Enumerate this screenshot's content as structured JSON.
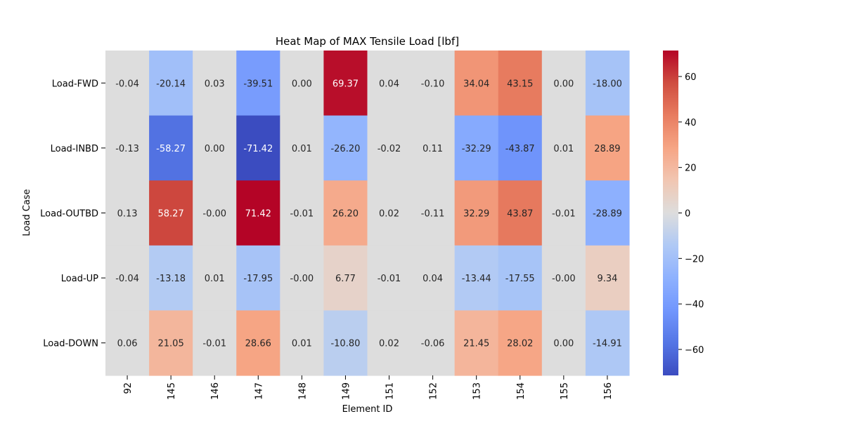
{
  "chart_data": {
    "type": "heatmap",
    "title": "Heat Map of MAX Tensile Load [lbf]",
    "xlabel": "Element ID",
    "ylabel": "Load Case",
    "x_categories": [
      "92",
      "145",
      "146",
      "147",
      "148",
      "149",
      "151",
      "152",
      "153",
      "154",
      "155",
      "156"
    ],
    "y_categories": [
      "Load-FWD",
      "Load-INBD",
      "Load-OUTBD",
      "Load-UP",
      "Load-DOWN"
    ],
    "values": [
      [
        -0.04,
        -20.14,
        0.03,
        -39.51,
        0.0,
        69.37,
        0.04,
        -0.1,
        34.04,
        43.15,
        0.0,
        -18.0
      ],
      [
        -0.13,
        -58.27,
        0.0,
        -71.42,
        0.01,
        -26.2,
        -0.02,
        0.11,
        -32.29,
        -43.87,
        0.01,
        28.89
      ],
      [
        0.13,
        58.27,
        -0.0,
        71.42,
        -0.01,
        26.2,
        0.02,
        -0.11,
        32.29,
        43.87,
        -0.01,
        -28.89
      ],
      [
        -0.04,
        -13.18,
        0.01,
        -17.95,
        -0.0,
        6.77,
        -0.01,
        0.04,
        -13.44,
        -17.55,
        -0.0,
        9.34
      ],
      [
        0.06,
        21.05,
        -0.01,
        28.66,
        0.01,
        -10.8,
        0.02,
        -0.06,
        21.45,
        28.02,
        0.0,
        -14.91
      ]
    ],
    "cell_labels": [
      [
        "-0.04",
        "-20.14",
        "0.03",
        "-39.51",
        "0.00",
        "69.37",
        "0.04",
        "-0.10",
        "34.04",
        "43.15",
        "0.00",
        "-18.00"
      ],
      [
        "-0.13",
        "-58.27",
        "0.00",
        "-71.42",
        "0.01",
        "-26.20",
        "-0.02",
        "0.11",
        "-32.29",
        "-43.87",
        "0.01",
        "28.89"
      ],
      [
        "0.13",
        "58.27",
        "-0.00",
        "71.42",
        "-0.01",
        "26.20",
        "0.02",
        "-0.11",
        "32.29",
        "43.87",
        "-0.01",
        "-28.89"
      ],
      [
        "-0.04",
        "-13.18",
        "0.01",
        "-17.95",
        "-0.00",
        "6.77",
        "-0.01",
        "0.04",
        "-13.44",
        "-17.55",
        "-0.00",
        "9.34"
      ],
      [
        "0.06",
        "21.05",
        "-0.01",
        "28.66",
        "0.01",
        "-10.80",
        "0.02",
        "-0.06",
        "21.45",
        "28.02",
        "0.00",
        "-14.91"
      ]
    ],
    "colormap": "coolwarm",
    "color_range": [
      -71.42,
      71.42
    ],
    "colorbar_ticks": [
      60,
      40,
      20,
      0,
      -20,
      -40,
      -60
    ],
    "colorbar_tick_labels": [
      "60",
      "40",
      "20",
      "0",
      "−20",
      "−40",
      "−60"
    ],
    "grid": false
  }
}
